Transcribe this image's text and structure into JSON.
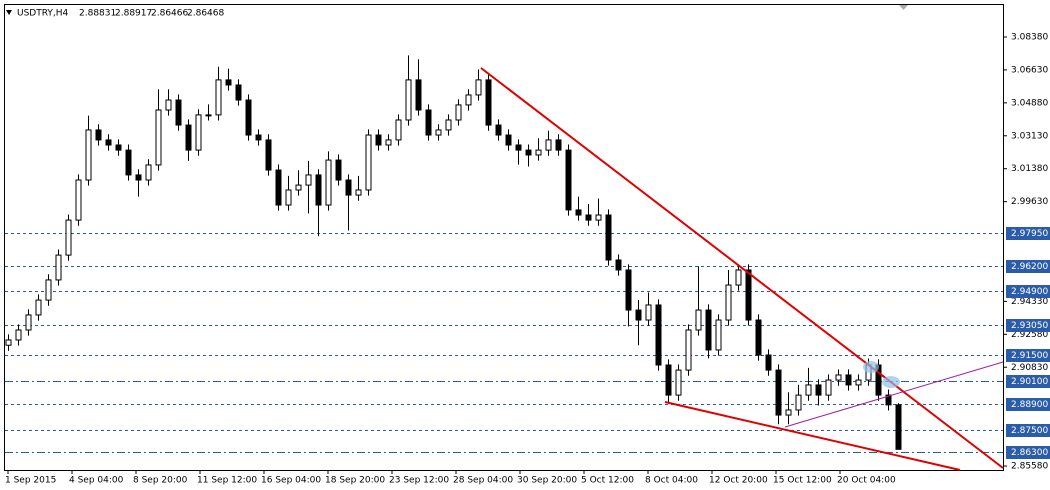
{
  "chart_data": {
    "type": "candlestick",
    "symbol": "USDTRY,H4",
    "header_values": [
      2.88831,
      2.88917,
      2.86466,
      2.86468
    ],
    "ylim": [
      2.8537,
      3.1008
    ],
    "xlim": [
      -0.3,
      99.5
    ],
    "yticks": [
      {
        "value": 3.0838,
        "label": "3.08380"
      },
      {
        "value": 3.0663,
        "label": "3.06630"
      },
      {
        "value": 3.0488,
        "label": "3.04880"
      },
      {
        "value": 3.0313,
        "label": "3.03130"
      },
      {
        "value": 3.0138,
        "label": "3.01380"
      },
      {
        "value": 2.9963,
        "label": "2.99630"
      },
      {
        "value": 2.9433,
        "label": "2.94330"
      },
      {
        "value": 2.9258,
        "label": "2.92580"
      },
      {
        "value": 2.9083,
        "label": "2.90830"
      },
      {
        "value": 2.8558,
        "label": "2.85580"
      }
    ],
    "xticks": [
      {
        "value": 0,
        "label": "1 Sep 2015"
      },
      {
        "value": 6.4,
        "label": "4 Sep 04:00"
      },
      {
        "value": 12.8,
        "label": "8 Sep 20:00"
      },
      {
        "value": 19.2,
        "label": "11 Sep 12:00"
      },
      {
        "value": 25.6,
        "label": "16 Sep 04:00"
      },
      {
        "value": 32,
        "label": "18 Sep 20:00"
      },
      {
        "value": 38.4,
        "label": "23 Sep 12:00"
      },
      {
        "value": 44.8,
        "label": "28 Sep 04:00"
      },
      {
        "value": 51.2,
        "label": "30 Sep 20:00"
      },
      {
        "value": 57.6,
        "label": "5 Oct 12:00"
      },
      {
        "value": 64,
        "label": "8 Oct 04:00"
      },
      {
        "value": 70.4,
        "label": "12 Oct 20:00"
      },
      {
        "value": 76.8,
        "label": "15 Oct 12:00"
      },
      {
        "value": 83.2,
        "label": "20 Oct 04:00"
      }
    ],
    "levels": [
      {
        "value": 2.9795,
        "label": "2.97950",
        "dash": "dash"
      },
      {
        "value": 2.962,
        "label": "2.96200",
        "dash": "dash"
      },
      {
        "value": 2.949,
        "label": "2.94900",
        "dash": "dash"
      },
      {
        "value": 2.9305,
        "label": "2.93050",
        "dash": "dash"
      },
      {
        "value": 2.915,
        "label": "2.91500",
        "dash": "dash"
      },
      {
        "value": 2.901,
        "label": "2.90100",
        "dash": "dashdot"
      },
      {
        "value": 2.889,
        "label": "2.88900",
        "dash": "dash"
      },
      {
        "value": 2.875,
        "label": "2.87500",
        "dash": "dash"
      },
      {
        "value": 2.863,
        "label": "2.86300",
        "dash": "dashdot"
      }
    ],
    "level_color": "#2a5caa",
    "candle_color": "#000000",
    "open": [
      2.92,
      2.9228,
      2.9281,
      2.9361,
      2.944,
      2.9547,
      2.9679,
      2.9865,
      3.0078,
      3.0344,
      3.0291,
      3.0264,
      3.0237,
      3.0105,
      3.0078,
      3.0158,
      3.045,
      3.0503,
      3.037,
      3.0237,
      3.0424,
      3.0424,
      3.061,
      3.0583,
      3.0503,
      3.0317,
      3.0291,
      3.0131,
      2.9945,
      3.0025,
      3.0051,
      3.0105,
      2.9945,
      3.0184,
      3.0078,
      2.9998,
      3.0025,
      3.0317,
      3.0264,
      3.0291,
      3.0397,
      3.061,
      3.045,
      3.0317,
      3.0344,
      3.0397,
      3.0477,
      3.053,
      3.061,
      3.037,
      3.0317,
      3.0264,
      3.0237,
      3.0211,
      3.0237,
      3.0291,
      3.0237,
      2.9919,
      2.9892,
      2.9865,
      2.9892,
      2.9653,
      2.96,
      2.9387,
      2.9334,
      2.9414,
      2.9095,
      2.8935,
      2.9068,
      2.9281,
      2.9387,
      2.9175,
      2.9334,
      2.952,
      2.96,
      2.9334,
      2.9148,
      2.9068,
      2.8829,
      2.8856,
      2.8935,
      2.8989,
      2.8935,
      2.9015,
      2.9042,
      2.8989,
      2.9015,
      2.9095,
      2.8935,
      2.88831
    ],
    "high": [
      2.9258,
      2.9311,
      2.9391,
      2.947,
      2.9577,
      2.9709,
      2.9895,
      3.0108,
      3.042,
      3.0374,
      3.0321,
      3.0294,
      3.0267,
      3.0135,
      3.0188,
      3.056,
      3.056,
      3.0533,
      3.04,
      3.0454,
      3.048,
      3.068,
      3.067,
      3.0613,
      3.0533,
      3.0347,
      3.0321,
      3.0161,
      3.01,
      3.013,
      3.018,
      3.0135,
      3.023,
      3.0214,
      3.0108,
      3.01,
      3.0347,
      3.0347,
      3.0321,
      3.0427,
      3.074,
      3.072,
      3.048,
      3.0374,
      3.0427,
      3.0507,
      3.056,
      3.0665,
      3.064,
      3.04,
      3.0347,
      3.0294,
      3.0267,
      3.03,
      3.034,
      3.0321,
      3.0267,
      2.999,
      2.995,
      2.998,
      2.9922,
      2.9683,
      2.963,
      2.944,
      2.948,
      2.9444,
      2.9125,
      2.9098,
      2.9311,
      2.962,
      2.9417,
      2.9364,
      2.96,
      2.963,
      2.963,
      2.9364,
      2.9178,
      2.9098,
      2.895,
      2.899,
      2.908,
      2.9019,
      2.9045,
      2.9072,
      2.9072,
      2.9045,
      2.913,
      2.9125,
      2.8965,
      2.88917
    ],
    "low": [
      2.917,
      2.9198,
      2.9251,
      2.9331,
      2.941,
      2.9517,
      2.9649,
      2.9835,
      3.0048,
      3.0261,
      3.0234,
      3.0207,
      3.0075,
      2.999,
      3.0048,
      3.0128,
      3.042,
      3.034,
      3.018,
      3.0207,
      3.0394,
      3.0394,
      3.0553,
      3.0473,
      3.0287,
      3.0261,
      3.0101,
      2.9915,
      2.9915,
      2.9995,
      2.99,
      2.978,
      2.9915,
      3.0048,
      2.981,
      2.9968,
      2.9995,
      3.0234,
      3.0234,
      3.0261,
      3.0367,
      3.042,
      3.0287,
      3.0287,
      3.0314,
      3.0367,
      3.0447,
      3.05,
      3.034,
      3.0287,
      3.0234,
      3.016,
      3.015,
      3.0181,
      3.0207,
      3.0207,
      2.9889,
      2.9862,
      2.9835,
      2.9835,
      2.9623,
      2.957,
      2.93,
      2.92,
      2.9304,
      2.9065,
      2.889,
      2.8905,
      2.9038,
      2.9251,
      2.913,
      2.9145,
      2.9304,
      2.949,
      2.9304,
      2.9118,
      2.9038,
      2.878,
      2.878,
      2.8826,
      2.8905,
      2.888,
      2.8905,
      2.8985,
      2.8959,
      2.8959,
      2.8985,
      2.8905,
      2.8853,
      2.86466
    ],
    "close": [
      2.9228,
      2.9281,
      2.9361,
      2.944,
      2.9547,
      2.9679,
      2.9865,
      3.0078,
      3.0344,
      3.0291,
      3.0264,
      3.0237,
      3.0105,
      3.0078,
      3.0158,
      3.045,
      3.0503,
      3.037,
      3.0237,
      3.0424,
      3.0424,
      3.061,
      3.0583,
      3.0503,
      3.0317,
      3.0291,
      3.0131,
      2.9945,
      3.0025,
      3.0051,
      3.0105,
      2.9945,
      3.0184,
      3.0078,
      2.9998,
      3.0025,
      3.0317,
      3.0264,
      3.0291,
      3.0397,
      3.061,
      3.045,
      3.0317,
      3.0344,
      3.0397,
      3.0477,
      3.053,
      3.061,
      3.037,
      3.0317,
      3.0264,
      3.0237,
      3.0211,
      3.0237,
      3.0291,
      3.0237,
      2.9919,
      2.9892,
      2.9865,
      2.9892,
      2.9653,
      2.96,
      2.9387,
      2.9334,
      2.9414,
      2.9095,
      2.8935,
      2.9068,
      2.9281,
      2.9387,
      2.9175,
      2.9334,
      2.952,
      2.96,
      2.9334,
      2.9148,
      2.9068,
      2.8829,
      2.8856,
      2.8935,
      2.8989,
      2.8935,
      2.9015,
      2.9042,
      2.8989,
      2.9015,
      2.9095,
      2.8935,
      2.8883,
      2.86468
    ]
  }
}
